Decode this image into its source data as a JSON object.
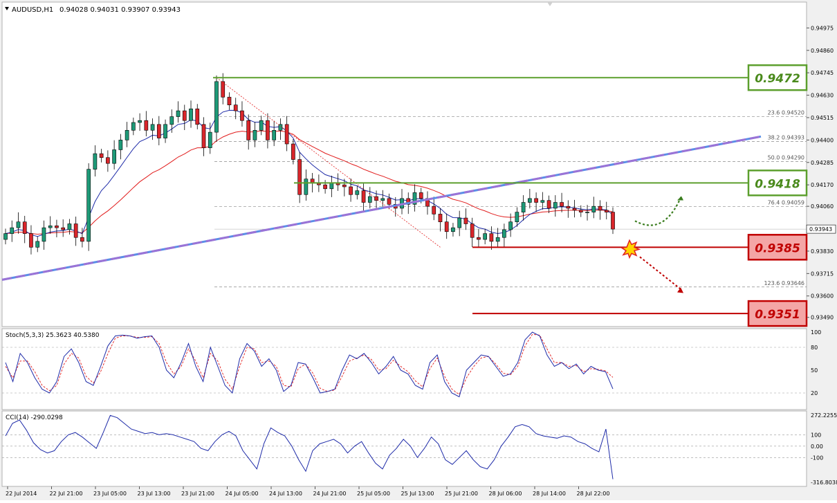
{
  "window": {
    "title": "AUDUSD,H1",
    "ohlc": "0.94028 0.94031 0.93907 0.93943"
  },
  "colors": {
    "bull": "#1e9a78",
    "bear": "#d9262b",
    "ma_fast": "#1d2aa8",
    "ma_slow": "#e11b1b",
    "trendline": "#9b73d6",
    "resistance": "#5c9f2d",
    "support": "#c00000"
  },
  "chart_data": [
    {
      "type": "candlestick",
      "title": "AUDUSD,H1",
      "ylim": [
        0.9345,
        0.9509
      ],
      "yticks": [
        "0.94975",
        "0.94860",
        "0.94745",
        "0.94630",
        "0.94515",
        "0.94400",
        "0.94285",
        "0.94170",
        "0.94060",
        "0.93830",
        "0.93715",
        "0.93600",
        "0.93490"
      ],
      "current_price": "0.93943",
      "xlabels": [
        "22 Jul 2014",
        "22 Jul 21:00",
        "23 Jul 05:00",
        "23 Jul 13:00",
        "23 Jul 21:00",
        "24 Jul 05:00",
        "24 Jul 13:00",
        "24 Jul 21:00",
        "25 Jul 05:00",
        "25 Jul 13:00",
        "25 Jul 21:00",
        "28 Jul 06:00",
        "28 Jul 14:00",
        "28 Jul 22:00"
      ],
      "close_path": [
        0.9392,
        0.9395,
        0.9398,
        0.9392,
        0.9385,
        0.9388,
        0.9395,
        0.9396,
        0.9395,
        0.9394,
        0.9397,
        0.939,
        0.9388,
        0.9425,
        0.9433,
        0.9431,
        0.9428,
        0.9435,
        0.944,
        0.9445,
        0.9449,
        0.945,
        0.9445,
        0.9448,
        0.9441,
        0.9448,
        0.9452,
        0.9455,
        0.945,
        0.9456,
        0.9448,
        0.9436,
        0.9444,
        0.947,
        0.9462,
        0.9458,
        0.9455,
        0.945,
        0.944,
        0.9445,
        0.945,
        0.944,
        0.9445,
        0.9448,
        0.9438,
        0.943,
        0.9412,
        0.942,
        0.9418,
        0.9417,
        0.9415,
        0.9418,
        0.9417,
        0.9416,
        0.9412,
        0.9414,
        0.9408,
        0.9411,
        0.9409,
        0.941,
        0.9407,
        0.9405,
        0.941,
        0.9407,
        0.9413,
        0.941,
        0.9406,
        0.9402,
        0.9398,
        0.9393,
        0.9395,
        0.94,
        0.9397,
        0.939,
        0.9389,
        0.9392,
        0.9388,
        0.939,
        0.9394,
        0.9398,
        0.9403,
        0.9408,
        0.941,
        0.9408,
        0.9409,
        0.9405,
        0.9408,
        0.9406,
        0.9405,
        0.9404,
        0.9403,
        0.9403,
        0.9406,
        0.9404,
        0.9403,
        0.93943
      ],
      "annotations": {
        "fibonacci": [
          {
            "label": "23.6 0.94520",
            "value": 0.9452
          },
          {
            "label": "38.2 0.94393",
            "value": 0.94393
          },
          {
            "label": "50.0 0.94290",
            "value": 0.9429
          },
          {
            "label": "76.4 0.94059",
            "value": 0.94059
          },
          {
            "label": "123.6 0.93646",
            "value": 0.93646
          }
        ],
        "levels": [
          {
            "label": "0.9472",
            "value": 0.9472,
            "kind": "resistance"
          },
          {
            "label": "0.9418",
            "value": 0.9418,
            "kind": "resistance"
          },
          {
            "label": "0.9385",
            "value": 0.9385,
            "kind": "support"
          },
          {
            "label": "0.9351",
            "value": 0.9351,
            "kind": "support"
          }
        ]
      }
    },
    {
      "type": "line",
      "title": "Stoch(5,3,3) 25.3623 40.5380",
      "ylim": [
        0,
        100
      ],
      "yticks": [
        "100",
        "80",
        "50",
        "20"
      ],
      "series": [
        {
          "values": [
            60,
            35,
            72,
            60,
            40,
            25,
            20,
            35,
            68,
            78,
            60,
            35,
            30,
            55,
            82,
            95,
            96,
            95,
            92,
            94,
            95,
            80,
            50,
            40,
            60,
            85,
            55,
            35,
            80,
            55,
            30,
            20,
            65,
            85,
            75,
            55,
            65,
            50,
            22,
            30,
            60,
            58,
            40,
            20,
            22,
            25,
            50,
            70,
            65,
            72,
            60,
            45,
            55,
            68,
            50,
            45,
            30,
            25,
            60,
            70,
            35,
            20,
            15,
            50,
            60,
            70,
            68,
            55,
            42,
            45,
            60,
            90,
            100,
            95,
            70,
            55,
            60,
            52,
            58,
            45,
            55,
            50,
            48,
            25.36
          ]
        },
        {
          "values": [
            55,
            40,
            62,
            62,
            48,
            30,
            23,
            30,
            58,
            72,
            66,
            42,
            33,
            48,
            72,
            92,
            95,
            95,
            93,
            93,
            94,
            85,
            60,
            45,
            55,
            78,
            62,
            40,
            72,
            62,
            38,
            25,
            55,
            80,
            78,
            60,
            62,
            55,
            30,
            28,
            52,
            58,
            46,
            26,
            22,
            24,
            42,
            62,
            66,
            70,
            64,
            50,
            52,
            63,
            55,
            48,
            36,
            28,
            52,
            66,
            42,
            25,
            18,
            40,
            55,
            66,
            68,
            58,
            46,
            44,
            55,
            82,
            97,
            96,
            78,
            60,
            60,
            55,
            56,
            48,
            52,
            51,
            49,
            40.54
          ]
        }
      ]
    },
    {
      "type": "line",
      "title": "CCI(14) -290.0298",
      "ylim": [
        -316.8038,
        272.2255
      ],
      "yticks": [
        "272.2255",
        "100",
        "0.00",
        "-100",
        "-316.8038"
      ],
      "series": [
        {
          "values": [
            90,
            200,
            230,
            140,
            30,
            -30,
            -60,
            -40,
            40,
            100,
            120,
            80,
            30,
            -20,
            120,
            270,
            250,
            200,
            150,
            130,
            110,
            120,
            100,
            110,
            100,
            80,
            60,
            40,
            -20,
            -40,
            40,
            100,
            130,
            90,
            -40,
            -120,
            -200,
            20,
            160,
            120,
            90,
            0,
            -120,
            -220,
            -40,
            20,
            40,
            60,
            20,
            -60,
            0,
            40,
            -60,
            -150,
            -200,
            -80,
            -20,
            60,
            0,
            -100,
            -20,
            80,
            20,
            -120,
            -160,
            -100,
            -40,
            -120,
            -180,
            -200,
            -120,
            0,
            80,
            170,
            190,
            170,
            110,
            90,
            80,
            70,
            90,
            80,
            40,
            20,
            -20,
            -50,
            150,
            -290.03
          ]
        }
      ]
    }
  ]
}
